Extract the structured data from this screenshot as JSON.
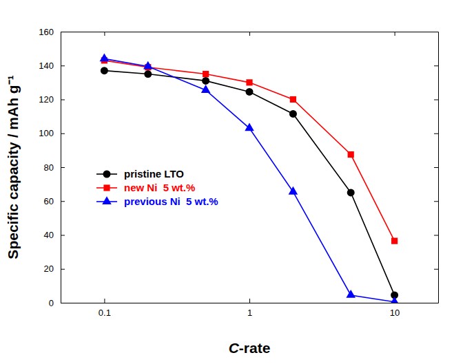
{
  "chart_data": {
    "type": "line",
    "x_label": "C-rate",
    "y_label": "Specific capacity / mAh g⁻¹",
    "log": "x",
    "x": [
      0.1,
      0.2,
      0.5,
      1,
      2,
      5,
      10
    ],
    "xlim": [
      0.05,
      20
    ],
    "xticks": [
      0.1,
      1,
      10
    ],
    "ylim": [
      0,
      160
    ],
    "yticks": [
      0,
      20,
      40,
      60,
      80,
      100,
      120,
      140,
      160
    ],
    "grid": false,
    "legend": "center left",
    "series": [
      {
        "name": "pristine LTO",
        "color": "#000000",
        "marker": "circle",
        "line_style": "solid",
        "values": [
          137,
          135,
          131,
          124.5,
          111.5,
          65,
          4.5
        ]
      },
      {
        "name": "new Ni  5 wt.%",
        "color": "#ff0000",
        "marker": "square",
        "line_style": "solid",
        "values": [
          143,
          139,
          135,
          130,
          120,
          87.5,
          36.5
        ]
      },
      {
        "name": "previous Ni  5 wt.%",
        "color": "#0000ff",
        "marker": "triangle",
        "line_style": "solid",
        "values": [
          144,
          139.5,
          125.5,
          103,
          65.5,
          4.5,
          0.5
        ]
      }
    ]
  }
}
